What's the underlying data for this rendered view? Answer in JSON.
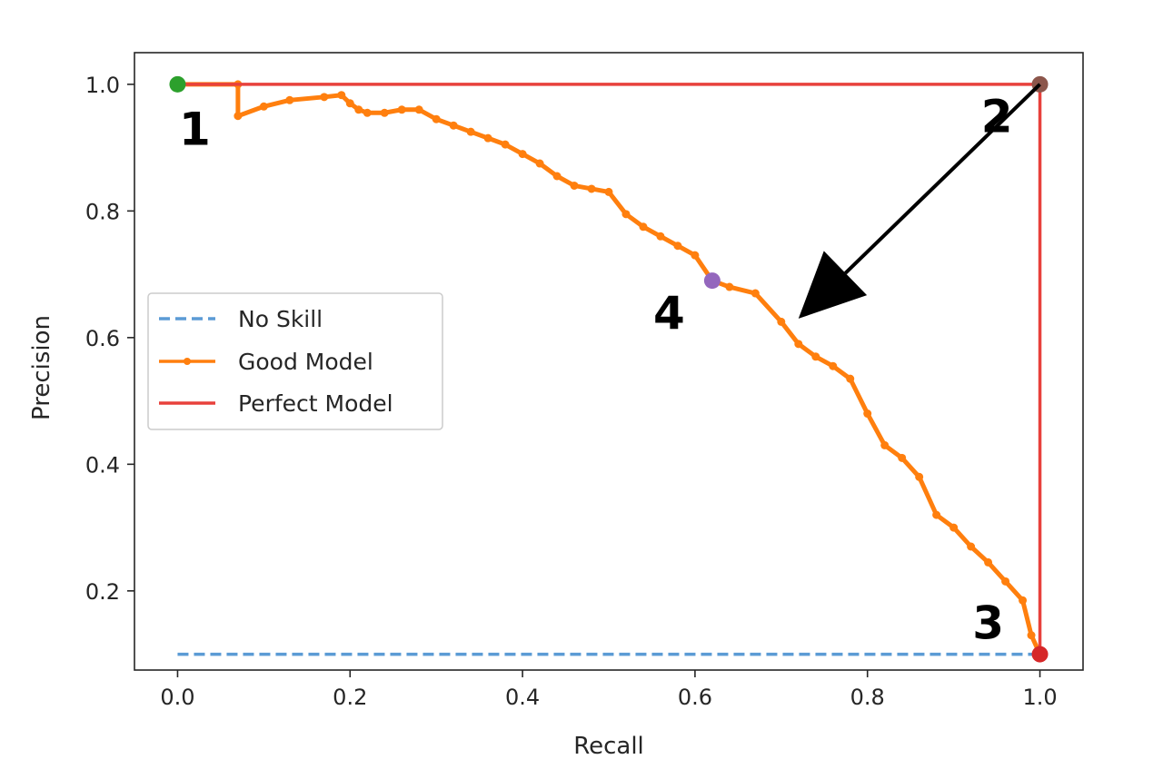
{
  "chart_data": {
    "type": "line",
    "xlabel": "Recall",
    "ylabel": "Precision",
    "xlim": [
      -0.05,
      1.05
    ],
    "ylim": [
      0.075,
      1.05
    ],
    "x_ticks": [
      "0.0",
      "0.2",
      "0.4",
      "0.6",
      "0.8",
      "1.0"
    ],
    "y_ticks": [
      "0.2",
      "0.4",
      "0.6",
      "0.8",
      "1.0"
    ],
    "grid": false,
    "legend_position": "center-left",
    "series": [
      {
        "name": "No Skill",
        "style": "dashed",
        "color": "#5b9bd5",
        "x": [
          0,
          1
        ],
        "y": [
          0.1,
          0.1
        ]
      },
      {
        "name": "Good Model",
        "style": "line-with-dots",
        "color": "#ff7f0e",
        "x": [
          0.0,
          0.07,
          0.07,
          0.1,
          0.13,
          0.17,
          0.19,
          0.2,
          0.21,
          0.22,
          0.24,
          0.26,
          0.28,
          0.3,
          0.32,
          0.34,
          0.36,
          0.38,
          0.4,
          0.42,
          0.44,
          0.46,
          0.48,
          0.5,
          0.52,
          0.54,
          0.56,
          0.58,
          0.6,
          0.62,
          0.64,
          0.67,
          0.7,
          0.72,
          0.74,
          0.76,
          0.78,
          0.8,
          0.82,
          0.84,
          0.86,
          0.88,
          0.9,
          0.92,
          0.94,
          0.96,
          0.98,
          0.99,
          1.0
        ],
        "y": [
          1.0,
          1.0,
          0.95,
          0.965,
          0.975,
          0.98,
          0.983,
          0.97,
          0.96,
          0.955,
          0.955,
          0.96,
          0.96,
          0.945,
          0.935,
          0.925,
          0.915,
          0.905,
          0.89,
          0.875,
          0.855,
          0.84,
          0.835,
          0.83,
          0.795,
          0.775,
          0.76,
          0.745,
          0.73,
          0.69,
          0.68,
          0.67,
          0.625,
          0.59,
          0.57,
          0.555,
          0.535,
          0.48,
          0.43,
          0.41,
          0.38,
          0.32,
          0.3,
          0.27,
          0.245,
          0.215,
          0.185,
          0.13,
          0.1
        ]
      },
      {
        "name": "Perfect Model",
        "style": "solid",
        "color": "#e8413c",
        "x": [
          0,
          1,
          1
        ],
        "y": [
          1.0,
          1.0,
          0.1
        ]
      }
    ],
    "markers": [
      {
        "x": 0.0,
        "y": 1.0,
        "color": "#2ca02c"
      },
      {
        "x": 1.0,
        "y": 1.0,
        "color": "#8c564b"
      },
      {
        "x": 1.0,
        "y": 0.1,
        "color": "#d62728"
      },
      {
        "x": 0.62,
        "y": 0.69,
        "color": "#9467bd"
      }
    ],
    "annotations": [
      {
        "text": "1",
        "x": 0.02,
        "y": 0.93
      },
      {
        "text": "2",
        "x": 0.95,
        "y": 0.95
      },
      {
        "text": "3",
        "x": 0.94,
        "y": 0.15
      },
      {
        "text": "4",
        "x": 0.57,
        "y": 0.64
      }
    ],
    "arrow": {
      "from": [
        1.0,
        1.0
      ],
      "to": [
        0.72,
        0.63
      ],
      "color": "#000000"
    }
  }
}
